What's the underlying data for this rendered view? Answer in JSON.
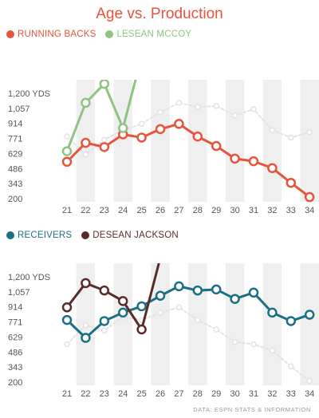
{
  "title": "Age vs. Production",
  "source": "DATA: ESPN STATS & INFORMATION",
  "colors": {
    "title": "#e6543a",
    "rb": "#e6543a",
    "mccoy": "#8fc383",
    "wr": "#1b6f85",
    "jackson": "#5a2b2b",
    "ghost": "#e3e3e3",
    "band": "#efefef"
  },
  "chart_data": [
    {
      "type": "line",
      "y_tick_labels": [
        "1,200 YDS",
        "1,057",
        "914",
        "771",
        "629",
        "486",
        "343",
        "200"
      ],
      "ylim": [
        200,
        1200
      ],
      "x": [
        21,
        22,
        23,
        24,
        25,
        26,
        27,
        28,
        29,
        30,
        31,
        32,
        33,
        34
      ],
      "grid": false,
      "legend": "top-left",
      "series": [
        {
          "name": "RUNNING BACKS",
          "color": "#e6543a",
          "style": "solid-line-open-markers",
          "values": [
            550,
            730,
            690,
            810,
            780,
            860,
            910,
            790,
            700,
            580,
            555,
            490,
            350,
            215
          ]
        },
        {
          "name": "LESEAN MCCOY",
          "color": "#8fc383",
          "style": "solid-line-open-markers",
          "values": [
            650,
            1110,
            1290,
            870,
            1550,
            null,
            null,
            null,
            null,
            null,
            null,
            null,
            null,
            null
          ]
        },
        {
          "name": "",
          "color": "#e3e3e3",
          "style": "ghost-dashed",
          "values": [
            790,
            620,
            760,
            850,
            910,
            1020,
            1110,
            1070,
            1080,
            990,
            1050,
            850,
            780,
            830
          ]
        }
      ]
    },
    {
      "type": "line",
      "y_tick_labels": [
        "1,200 YDS",
        "1,057",
        "914",
        "771",
        "629",
        "486",
        "343",
        "200"
      ],
      "ylim": [
        200,
        1200
      ],
      "x": [
        21,
        22,
        23,
        24,
        25,
        26,
        27,
        28,
        29,
        30,
        31,
        32,
        33,
        34
      ],
      "grid": false,
      "legend": "top-left",
      "series": [
        {
          "name": "RECEIVERS",
          "color": "#1b6f85",
          "style": "solid-line-open-markers",
          "values": [
            790,
            620,
            780,
            860,
            920,
            1020,
            1110,
            1070,
            1080,
            990,
            1050,
            860,
            780,
            840
          ]
        },
        {
          "name": "DESEAN JACKSON",
          "color": "#5a2b2b",
          "style": "solid-line-open-markers",
          "values": [
            910,
            1140,
            1070,
            970,
            700,
            1380,
            null,
            null,
            null,
            null,
            null,
            null,
            null,
            null
          ]
        },
        {
          "name": "",
          "color": "#e3e3e3",
          "style": "ghost-dashed",
          "values": [
            560,
            740,
            690,
            820,
            790,
            860,
            910,
            790,
            700,
            580,
            560,
            500,
            350,
            210
          ]
        }
      ]
    }
  ]
}
